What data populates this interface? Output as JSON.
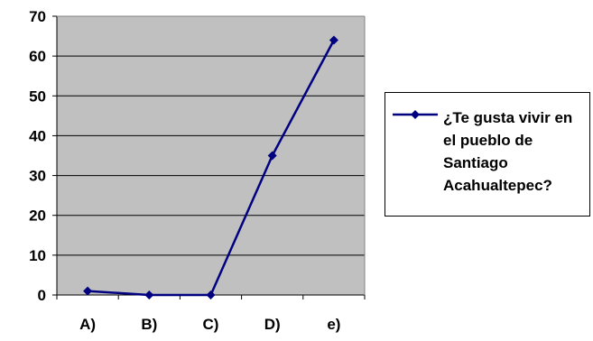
{
  "chart_data": {
    "type": "line",
    "categories": [
      "A)",
      "B)",
      "C)",
      "D)",
      "e)"
    ],
    "series": [
      {
        "name": "¿Te gusta vivir en el pueblo de Santiago Acahualtepec?",
        "values": [
          1,
          0,
          0,
          35,
          64
        ]
      }
    ],
    "ylim": [
      0,
      70
    ],
    "yticks": [
      "0",
      "10",
      "20",
      "30",
      "40",
      "50",
      "60",
      "70"
    ],
    "grid": true,
    "legend_position": "right",
    "colors": {
      "line": "#000080",
      "plot_bg": "#c0c0c0",
      "grid": "#000000"
    }
  }
}
